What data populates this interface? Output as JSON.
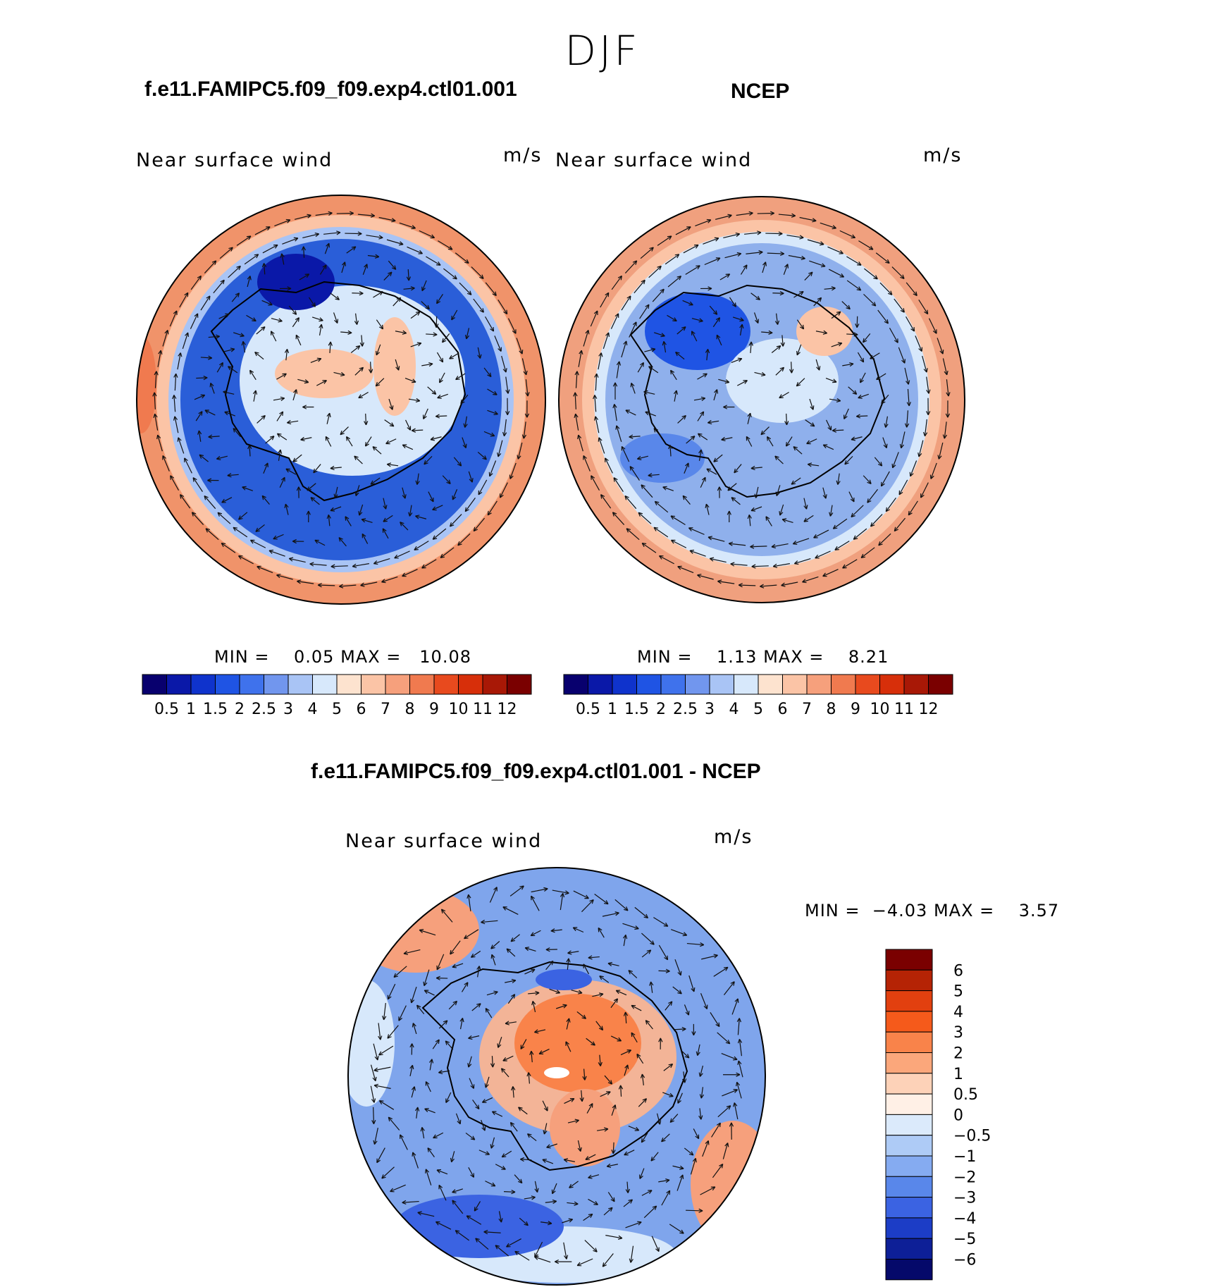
{
  "figure": {
    "season": "DJF"
  },
  "panels": [
    {
      "id": "model",
      "title": "f.e11.FAMIPC5.f09_f09.exp4.ctl01.001",
      "variable": "Near surface wind",
      "units": "m/s",
      "min_label": "MIN =",
      "min_value": "0.05",
      "max_label": "MAX =",
      "max_value": "10.08",
      "background_color": "#2a5ed8",
      "ring_color": "#f0936a"
    },
    {
      "id": "obs",
      "title": "NCEP",
      "variable": "Near surface wind",
      "units": "m/s",
      "min_label": "MIN =",
      "min_value": "1.13",
      "max_label": "MAX =",
      "max_value": "8.21",
      "background_color": "#8fb0ec",
      "ring_color": "#f0a07e"
    },
    {
      "id": "diff",
      "title": "f.e11.FAMIPC5.f09_f09.exp4.ctl01.001 - NCEP",
      "variable": "Near surface wind",
      "units": "m/s",
      "min_label": "MIN =",
      "min_value": "−4.03",
      "max_label": "MAX =",
      "max_value": "3.57",
      "background_color": "#7fa5ec",
      "ring_color": "#f3b497"
    }
  ],
  "colorbars": {
    "wind": {
      "labels": [
        "0.5",
        "1",
        "1.5",
        "2",
        "2.5",
        "3",
        "4",
        "5",
        "6",
        "7",
        "8",
        "9",
        "10",
        "11",
        "12"
      ],
      "colors": [
        "#08006e",
        "#0a18a8",
        "#0f33cc",
        "#1f54e4",
        "#3f72ec",
        "#7196ee",
        "#a9c4f5",
        "#d7e8fb",
        "#fde3cf",
        "#fbc4a6",
        "#f6a07c",
        "#f07a4f",
        "#e84a1e",
        "#d72f0a",
        "#a81806",
        "#7a0000"
      ]
    },
    "diff": {
      "labels": [
        "6",
        "5",
        "4",
        "3",
        "2",
        "1",
        "0.5",
        "0",
        "−0.5",
        "−1",
        "−2",
        "−3",
        "−4",
        "−5",
        "−6"
      ],
      "colors": [
        "#7a0000",
        "#b52305",
        "#e2400f",
        "#f55a1b",
        "#f9834a",
        "#fba77b",
        "#fdd2b8",
        "#fff0e6",
        "#dbeafb",
        "#aecbf6",
        "#85abf1",
        "#5987ea",
        "#3b63e2",
        "#1c3dc6",
        "#0d1f97",
        "#05096a"
      ]
    }
  }
}
